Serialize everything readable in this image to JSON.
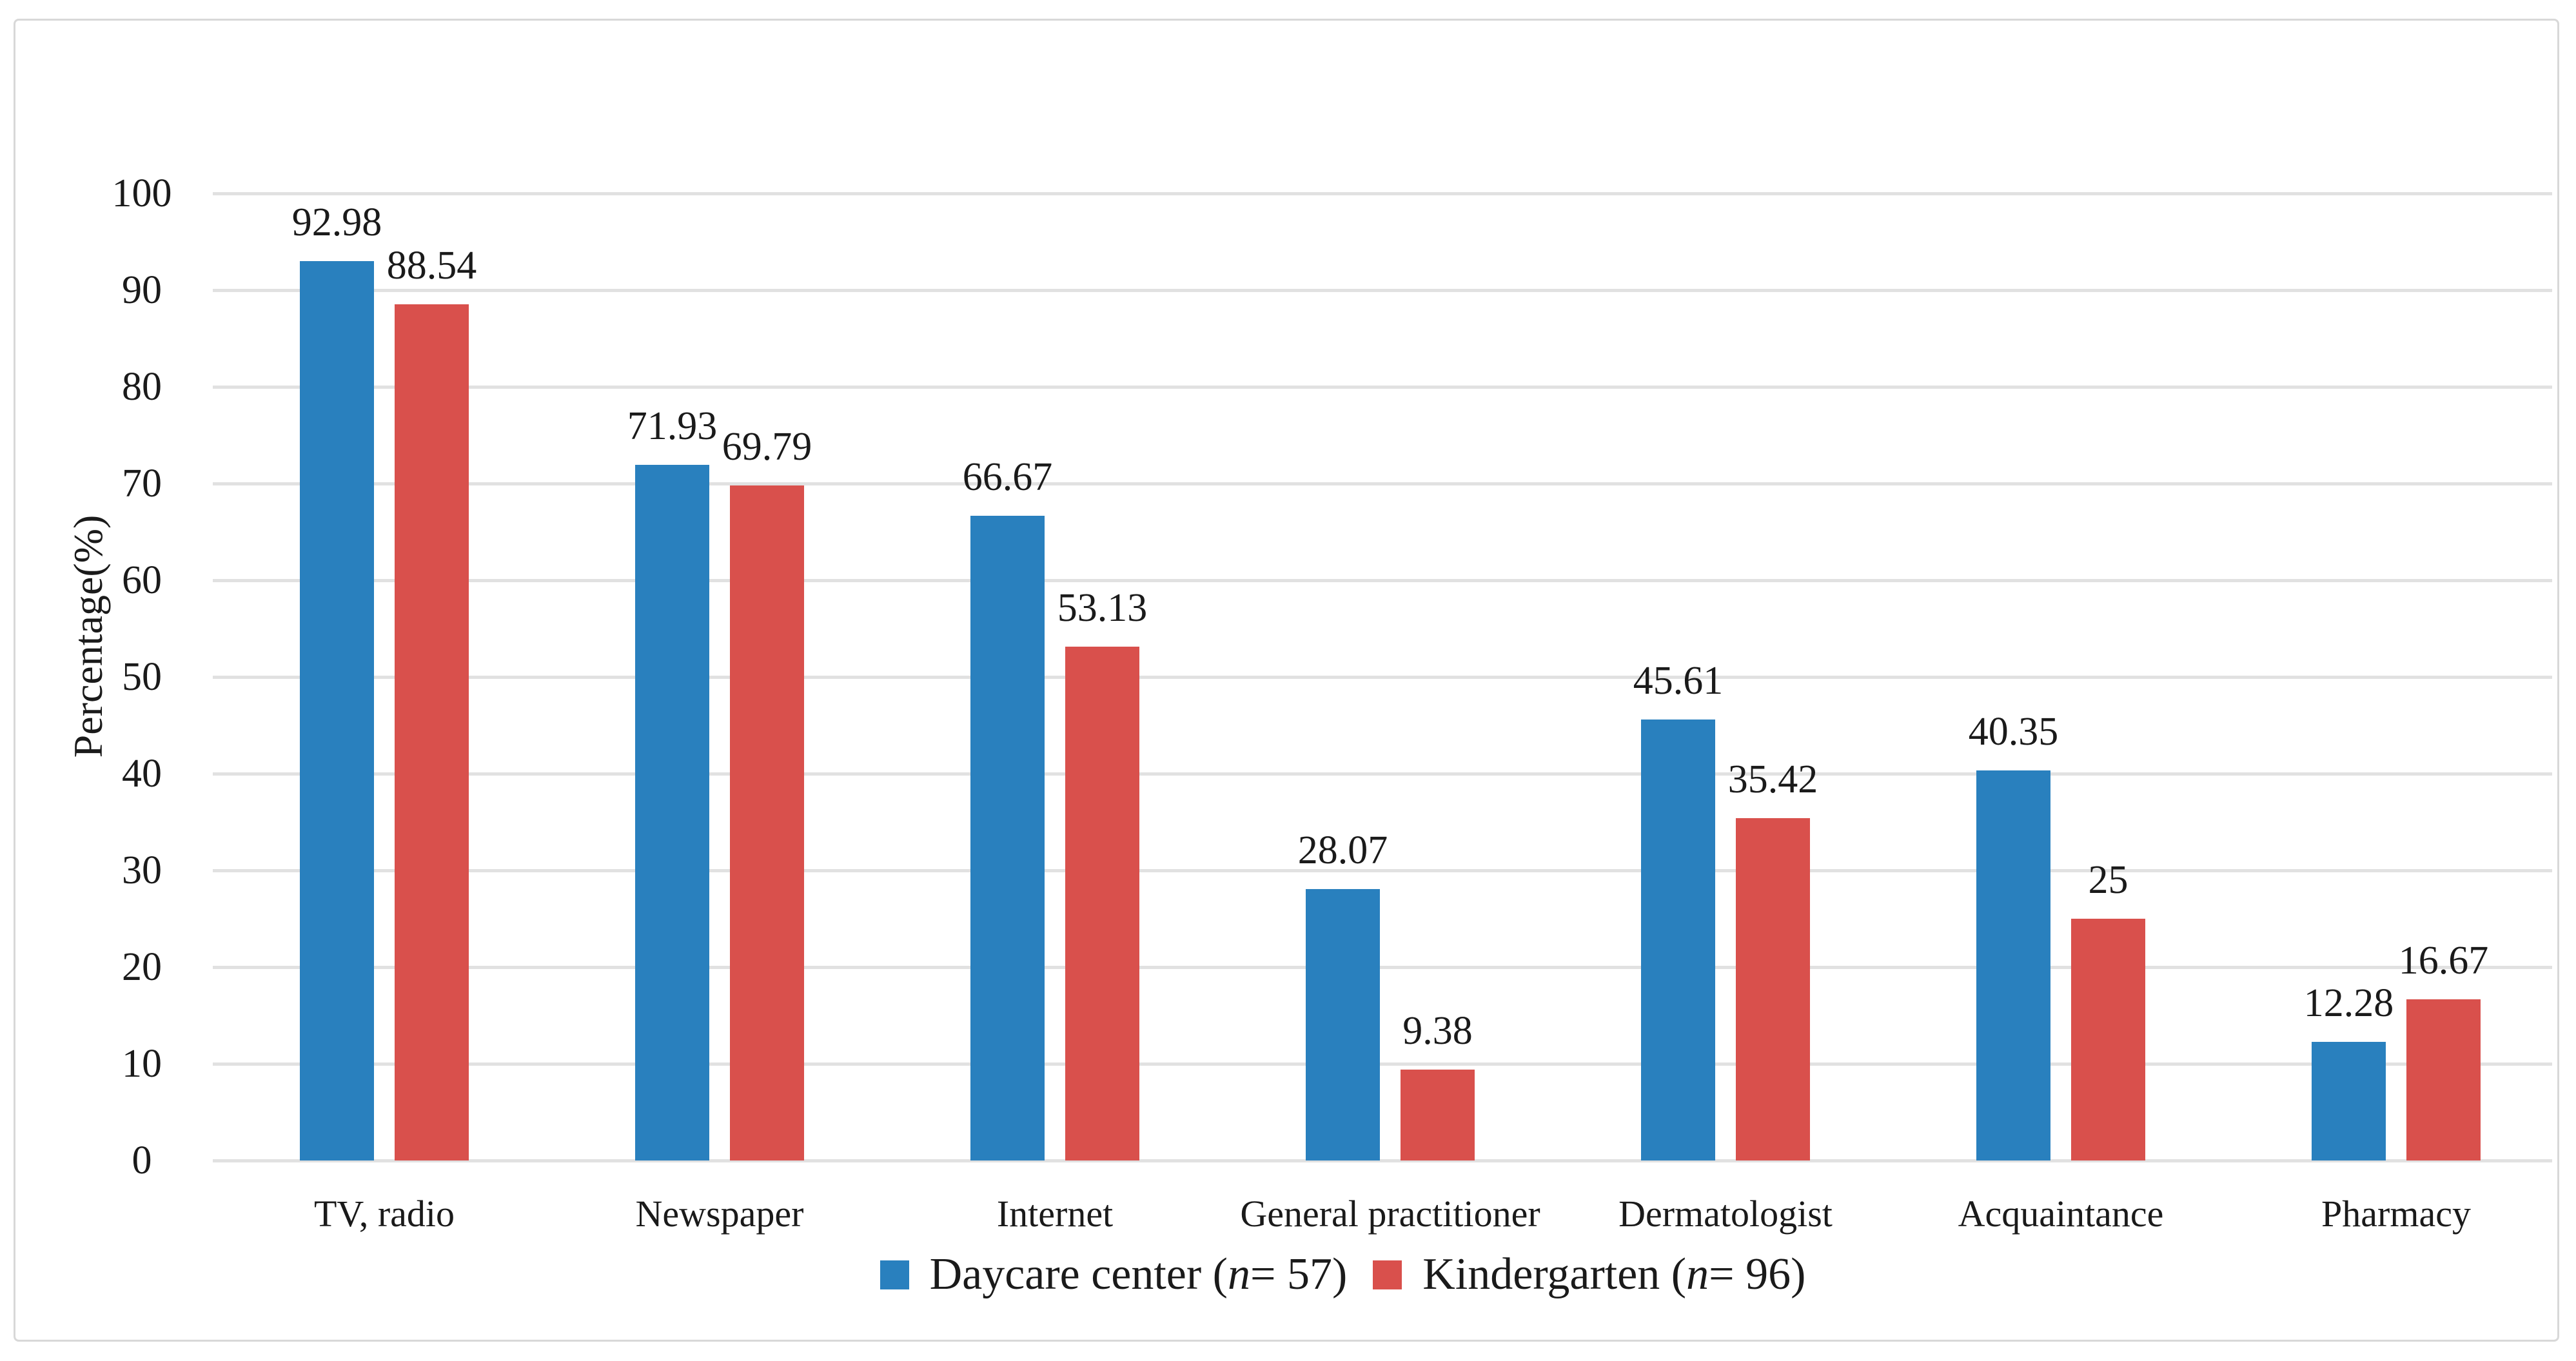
{
  "figure": {
    "background_color": "#ffffff",
    "frame_border_color": "#d8d8d8",
    "gridline_color": "#e1e1e1",
    "text_color": "#1a1a1a"
  },
  "chart_data": {
    "type": "bar",
    "title": "",
    "xlabel": "",
    "ylabel": "Percentage(%)",
    "ylim": [
      0,
      100
    ],
    "ytick_step": 10,
    "ytick_labels": [
      "0",
      "10",
      "20",
      "30",
      "40",
      "50",
      "60",
      "70",
      "80",
      "90",
      "100"
    ],
    "grid": "horizontal",
    "legend_position": "bottom-center",
    "categories": [
      "TV, radio",
      "Newspaper",
      "Internet",
      "General practitioner",
      "Dermatologist",
      "Acquaintance",
      "Pharmacy"
    ],
    "series": [
      {
        "name": "Daycare center ( n = 57)",
        "name_prefix": "Daycare center ( ",
        "name_italic": "n",
        "name_suffix": " = 57)",
        "color": "#2980BE",
        "values": [
          92.98,
          71.93,
          66.67,
          28.07,
          45.61,
          40.35,
          12.28
        ],
        "labels": [
          "92.98",
          "71.93",
          "66.67",
          "28.07",
          "45.61",
          "40.35",
          "12.28"
        ]
      },
      {
        "name": "Kindergarten (n = 96)",
        "name_prefix": "Kindergarten (",
        "name_italic": "n",
        "name_suffix": " = 96)",
        "color": "#D9504C",
        "values": [
          88.54,
          69.79,
          53.13,
          9.38,
          35.42,
          25,
          16.67
        ],
        "labels": [
          "88.54",
          "69.79",
          "53.13",
          "9.38",
          "35.42",
          "25",
          "16.67"
        ]
      }
    ]
  }
}
